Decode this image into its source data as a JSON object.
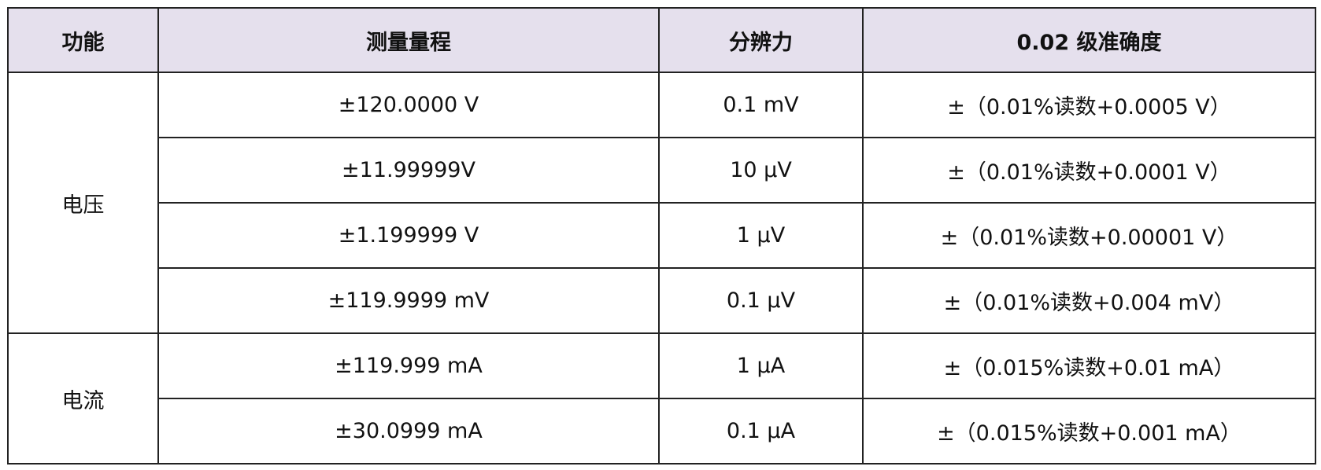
{
  "table": {
    "header": [
      "功能",
      "测量量程",
      "分辨力",
      "0.02 级准确度"
    ],
    "groups": [
      {
        "function": "电压",
        "rows": [
          [
            "±120.0000 V",
            "0.1 mV",
            "±（0.01%读数+0.0005 V）"
          ],
          [
            "±11.99999V",
            "10 μV",
            "±（0.01%读数+0.0001 V）"
          ],
          [
            "±1.199999 V",
            "1 μV",
            "±（0.01%读数+0.00001 V）"
          ],
          [
            "±119.9999 mV",
            "0.1 μV",
            "±（0.01%读数+0.004 mV）"
          ]
        ]
      },
      {
        "function": "电流",
        "rows": [
          [
            "±119.999 mA",
            "1 μA",
            "±（0.015%读数+0.01 mA）"
          ],
          [
            "±30.0999 mA",
            "0.1 μA",
            "±（0.015%读数+0.001 mA）"
          ]
        ]
      }
    ]
  }
}
